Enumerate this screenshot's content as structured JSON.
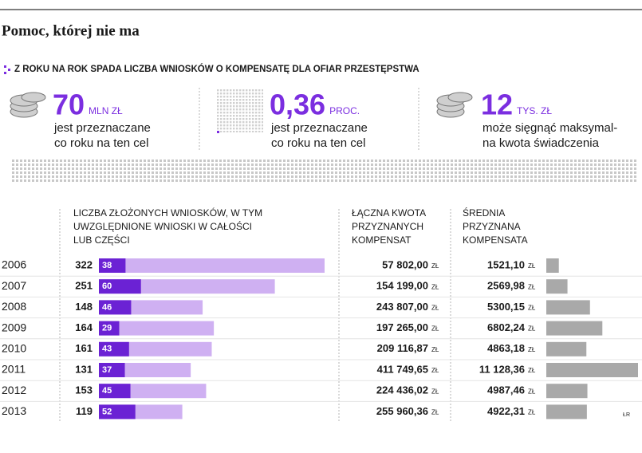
{
  "chart_data": {
    "type": "bar",
    "title": "Pomoc, której nie ma",
    "subtitle": "Z ROKU NA ROK SPADA LICZBA WNIOSKÓW O KOMPENSATĘ DLA OFIAR PRZESTĘPSTWA",
    "facts": [
      {
        "value": "70",
        "unit": "MLN ZŁ",
        "lines": [
          "jest przeznaczane",
          "co roku na ten cel"
        ]
      },
      {
        "value": "0,36",
        "unit": "PROC.",
        "lines": [
          "jest przeznaczane",
          "co roku na ten cel"
        ]
      },
      {
        "value": "12",
        "unit": "TYS. ZŁ",
        "lines": [
          "może sięgnąć maksymal-",
          "na kwota świadczenia"
        ]
      }
    ],
    "headers": [
      [
        "LICZBA ZŁOŻONYCH WNIOSKÓW, W TYM",
        "UWZGLĘDNIONE WNIOSKI W CAŁOŚCI",
        "LUB CZĘŚCI"
      ],
      [
        "ŁĄCZNA KWOTA",
        "PRZYZNANYCH",
        "KOMPENSAT"
      ],
      [
        "ŚREDNIA",
        "PRZYZNANA",
        "KOMPENSATA"
      ]
    ],
    "categories": [
      "2006",
      "2007",
      "2008",
      "2009",
      "2010",
      "2011",
      "2012",
      "2013"
    ],
    "applications": {
      "color": "#cfb0f2",
      "values": [
        322,
        251,
        148,
        164,
        161,
        131,
        153,
        119
      ]
    },
    "accepted": {
      "color": "#6b22d4",
      "values": [
        38,
        60,
        46,
        29,
        43,
        37,
        45,
        52
      ]
    },
    "total_amount": {
      "values": [
        57802.0,
        154199.0,
        243807.0,
        197265.0,
        209116.87,
        411749.65,
        224436.02,
        255960.36
      ],
      "value_labels": [
        "57 802,00",
        "154 199,00",
        "243 807,00",
        "197 265,00",
        "209 116,87",
        "411 749,65",
        "224 436,02",
        "255 960,36"
      ]
    },
    "average": {
      "color": "#a9a9a9",
      "values": [
        1521.1,
        2569.98,
        5300.15,
        6802.24,
        4863.18,
        11128.36,
        4987.46,
        4922.31
      ],
      "value_labels": [
        "1521,10",
        "2569,98",
        "5300,15",
        "6802,24",
        "4863,18",
        "11 128,36",
        "4987,46",
        "4922,31"
      ]
    },
    "currency": "ZŁ",
    "source": "ŁR"
  }
}
